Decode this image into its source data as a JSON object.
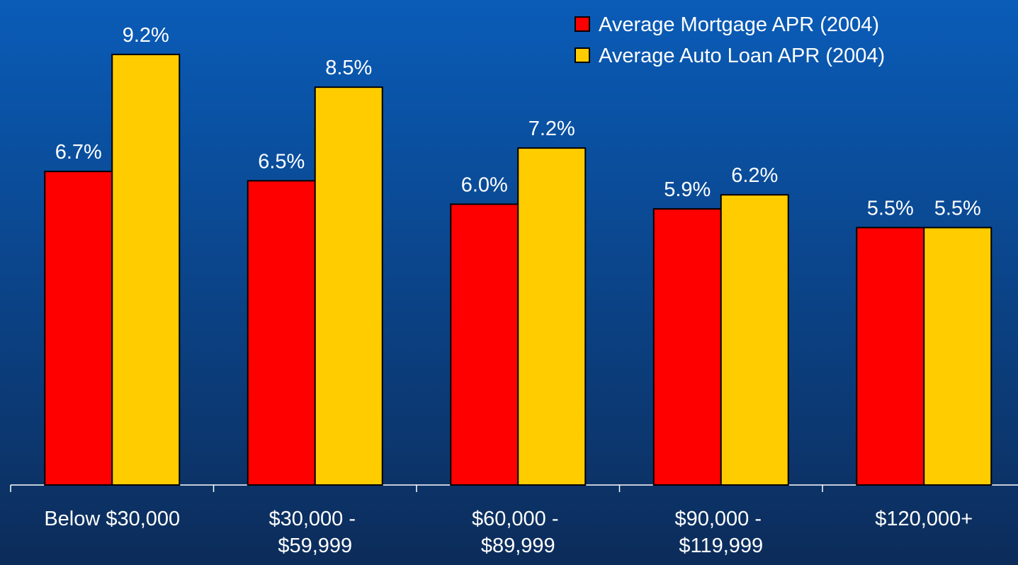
{
  "chart_data": {
    "type": "bar",
    "categories": [
      "Below $30,000",
      "$30,000 - $59,999",
      "$60,000 - $89,999",
      "$90,000 - $119,999",
      "$120,000+"
    ],
    "series": [
      {
        "name": "Average Mortgage APR (2004)",
        "color": "#ff0000",
        "values": [
          6.7,
          6.5,
          6.0,
          5.9,
          5.5
        ],
        "value_labels": [
          "6.7%",
          "6.5%",
          "6.0%",
          "5.9%",
          "5.5%"
        ]
      },
      {
        "name": "Average Auto Loan APR (2004)",
        "color": "#ffcc00",
        "values": [
          9.2,
          8.5,
          7.2,
          6.2,
          5.5
        ],
        "value_labels": [
          "9.2%",
          "8.5%",
          "7.2%",
          "6.2%",
          "5.5%"
        ]
      }
    ],
    "ylim": [
      0,
      10
    ],
    "legend": "top-right"
  }
}
